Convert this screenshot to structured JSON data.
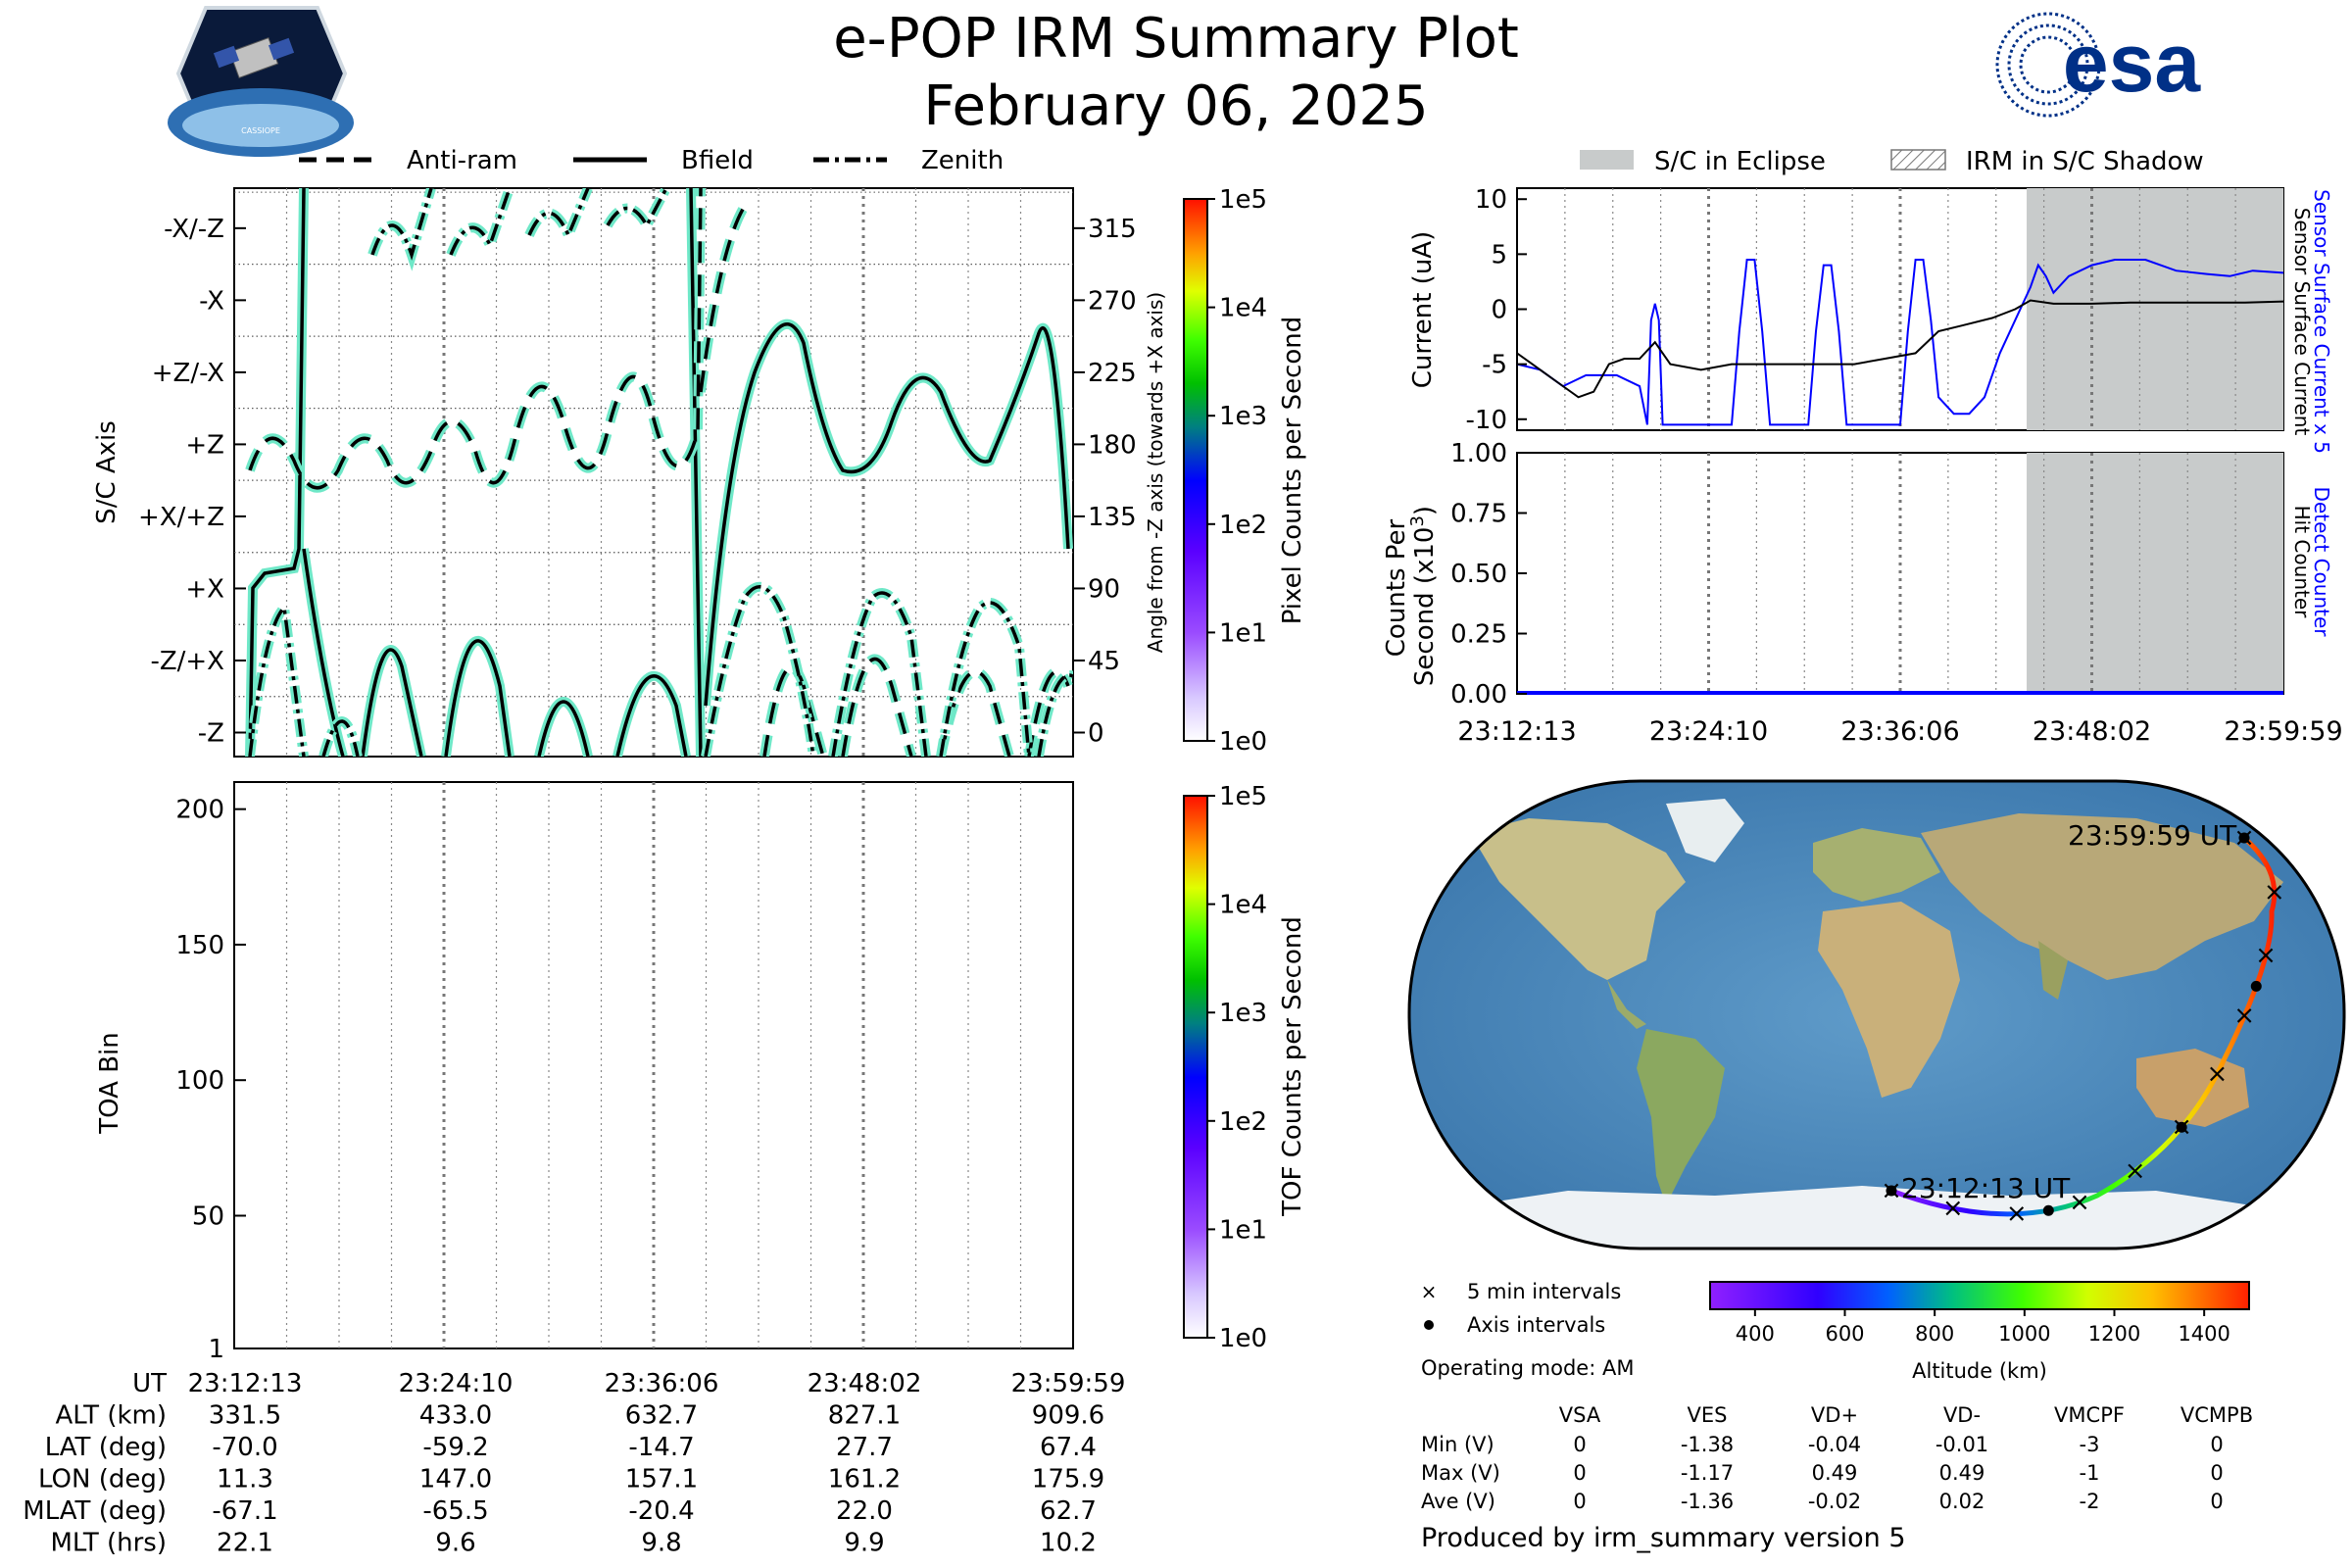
{
  "header": {
    "title": "e-POP IRM Summary Plot",
    "date": "February 06, 2025",
    "left_logo_text": "CASSIOPE",
    "right_logo_text": "esa",
    "brand_color": "#003087"
  },
  "time_ticks": [
    "23:12:13",
    "23:24:10",
    "23:36:06",
    "23:48:02",
    "23:59:59"
  ],
  "legend_top_left": [
    {
      "label": "Anti-ram",
      "style": "dashed"
    },
    {
      "label": "Bfield",
      "style": "solid"
    },
    {
      "label": "Zenith",
      "style": "dashdot"
    }
  ],
  "legend_top_right": [
    {
      "label": "S/C in Eclipse",
      "style": "filled"
    },
    {
      "label": "IRM in S/C Shadow",
      "style": "hatched"
    }
  ],
  "panels": {
    "axis_panel": {
      "ylabel": "S/C Axis",
      "left_ticks": [
        "-X/-Z",
        "-X",
        "+Z/-X",
        "+Z",
        "+X/+Z",
        "+X",
        "-Z/+X",
        "-Z"
      ],
      "right_ticks": [
        "315",
        "270",
        "225",
        "180",
        "135",
        "90",
        "45",
        "0"
      ],
      "right_label": "Angle from -Z axis (towards +X axis)",
      "colorbar_label": "Pixel Counts per Second",
      "colorbar_ticks": [
        "1e5",
        "1e4",
        "1e3",
        "1e2",
        "1e1",
        "1e0"
      ]
    },
    "toa_panel": {
      "ylabel": "TOA Bin",
      "yticks": [
        "200",
        "150",
        "100",
        "50",
        "1"
      ],
      "colorbar_label": "TOF Counts per Second",
      "colorbar_ticks": [
        "1e5",
        "1e4",
        "1e3",
        "1e2",
        "1e1",
        "1e0"
      ]
    },
    "current_panel": {
      "ylabel": "Current (uA)",
      "yticks": [
        "10",
        "5",
        "0",
        "-5",
        "-10"
      ],
      "right_label_blue": "Sensor Surface Current x 5",
      "right_label_black": "Sensor Surface Current"
    },
    "counts_panel": {
      "ylabel_line1": "Counts Per",
      "ylabel_line2": "Second (x10",
      "ylabel_exp": "3",
      "ylabel_close": ")",
      "yticks": [
        "1.00",
        "0.75",
        "0.50",
        "0.25",
        "0.00"
      ],
      "right_label_blue": "Detect Counter",
      "right_label_black": "Hit Counter"
    }
  },
  "orbit_table": {
    "row_labels": [
      "UT",
      "ALT (km)",
      "LAT (deg)",
      "LON (deg)",
      "MLAT (deg)",
      "MLT (hrs)"
    ],
    "columns": [
      [
        "23:12:13",
        "331.5",
        "-70.0",
        "11.3",
        "-67.1",
        "22.1"
      ],
      [
        "23:24:10",
        "433.0",
        "-59.2",
        "147.0",
        "-65.5",
        "9.6"
      ],
      [
        "23:36:06",
        "632.7",
        "-14.7",
        "157.1",
        "-20.4",
        "9.8"
      ],
      [
        "23:48:02",
        "827.1",
        "27.7",
        "161.2",
        "22.0",
        "9.9"
      ],
      [
        "23:59:59",
        "909.6",
        "67.4",
        "175.9",
        "62.7",
        "10.2"
      ]
    ]
  },
  "map": {
    "start_label": "23:12:13 UT",
    "end_label": "23:59:59 UT",
    "legend_5min": "5 min intervals",
    "legend_axis": "Axis intervals",
    "colorbar_label": "Altitude (km)",
    "colorbar_ticks": [
      "400",
      "600",
      "800",
      "1000",
      "1200",
      "1400"
    ]
  },
  "operating_mode": "Operating mode: AM",
  "voltage_table": {
    "headers": [
      "VSA",
      "VES",
      "VD+",
      "VD-",
      "VMCPF",
      "VCMPB"
    ],
    "rows": [
      {
        "label": "Min (V)",
        "values": [
          "0",
          "-1.38",
          "-0.04",
          "-0.01",
          "-3",
          "0"
        ]
      },
      {
        "label": "Max (V)",
        "values": [
          "0",
          "-1.17",
          "0.49",
          "0.49",
          "-1",
          "0"
        ]
      },
      {
        "label": "Ave (V)",
        "values": [
          "0",
          "-1.36",
          "-0.02",
          "0.02",
          "-2",
          "0"
        ]
      }
    ]
  },
  "footer": "Produced by irm_summary version 5",
  "chart_data": [
    {
      "type": "line",
      "title": "",
      "ylabel": "S/C Axis",
      "yrange": [
        -15,
        340
      ],
      "x": [
        "23:12:13",
        "23:24:10",
        "23:36:06",
        "23:48:02",
        "23:59:59"
      ],
      "series": [
        {
          "name": "Anti-ram",
          "color": "#00c8a0",
          "style": "dashed"
        },
        {
          "name": "Bfield",
          "color": "#00c8a0",
          "style": "solid"
        },
        {
          "name": "Zenith",
          "color": "#00c8a0",
          "style": "dashdot"
        }
      ]
    },
    {
      "type": "heatmap",
      "ylabel": "TOA Bin",
      "yrange": [
        1,
        210
      ],
      "values": "none"
    },
    {
      "type": "line",
      "ylabel": "Current (uA)",
      "yrange": [
        -11,
        11
      ],
      "eclipse_start_fraction": 0.665,
      "series": [
        {
          "name": "Sensor Surface Current x 5",
          "color": "#0000ff",
          "values": [
            [
              0.0,
              -5
            ],
            [
              0.03,
              -5.5
            ],
            [
              0.06,
              -7
            ],
            [
              0.09,
              -6
            ],
            [
              0.13,
              -6
            ],
            [
              0.16,
              -7
            ],
            [
              0.17,
              -10.5
            ],
            [
              0.175,
              -1
            ],
            [
              0.18,
              0.5
            ],
            [
              0.185,
              -1
            ],
            [
              0.19,
              -10.5
            ],
            [
              0.28,
              -10.5
            ],
            [
              0.29,
              -2
            ],
            [
              0.3,
              4.5
            ],
            [
              0.31,
              4.5
            ],
            [
              0.32,
              -2
            ],
            [
              0.33,
              -10.5
            ],
            [
              0.38,
              -10.5
            ],
            [
              0.39,
              -2
            ],
            [
              0.4,
              4
            ],
            [
              0.41,
              4
            ],
            [
              0.42,
              -2
            ],
            [
              0.43,
              -10.5
            ],
            [
              0.5,
              -10.5
            ],
            [
              0.51,
              -2
            ],
            [
              0.52,
              4.5
            ],
            [
              0.53,
              4.5
            ],
            [
              0.54,
              -1
            ],
            [
              0.55,
              -8
            ],
            [
              0.57,
              -9.5
            ],
            [
              0.59,
              -9.5
            ],
            [
              0.61,
              -8
            ],
            [
              0.63,
              -4
            ],
            [
              0.65,
              -1
            ],
            [
              0.67,
              2
            ],
            [
              0.68,
              4
            ],
            [
              0.69,
              3
            ],
            [
              0.7,
              1.5
            ],
            [
              0.72,
              3
            ],
            [
              0.75,
              4
            ],
            [
              0.78,
              4.5
            ],
            [
              0.82,
              4.5
            ],
            [
              0.86,
              3.5
            ],
            [
              0.9,
              3.2
            ],
            [
              0.93,
              3
            ],
            [
              0.96,
              3.5
            ],
            [
              1.0,
              3.3
            ]
          ]
        },
        {
          "name": "Sensor Surface Current",
          "color": "#000000",
          "values": [
            [
              0.0,
              -4
            ],
            [
              0.02,
              -5
            ],
            [
              0.05,
              -6.5
            ],
            [
              0.08,
              -8
            ],
            [
              0.1,
              -7.5
            ],
            [
              0.12,
              -5
            ],
            [
              0.14,
              -4.5
            ],
            [
              0.16,
              -4.5
            ],
            [
              0.18,
              -3
            ],
            [
              0.2,
              -5
            ],
            [
              0.24,
              -5.5
            ],
            [
              0.28,
              -5
            ],
            [
              0.32,
              -5
            ],
            [
              0.36,
              -5
            ],
            [
              0.4,
              -5
            ],
            [
              0.44,
              -5
            ],
            [
              0.48,
              -4.5
            ],
            [
              0.52,
              -4
            ],
            [
              0.55,
              -2
            ],
            [
              0.58,
              -1.5
            ],
            [
              0.62,
              -0.8
            ],
            [
              0.65,
              0
            ],
            [
              0.67,
              0.8
            ],
            [
              0.7,
              0.5
            ],
            [
              0.75,
              0.5
            ],
            [
              0.8,
              0.6
            ],
            [
              0.85,
              0.6
            ],
            [
              0.9,
              0.6
            ],
            [
              0.95,
              0.6
            ],
            [
              1.0,
              0.7
            ]
          ]
        }
      ]
    },
    {
      "type": "line",
      "ylabel": "Counts Per Second (x10^3)",
      "yrange": [
        0,
        1
      ],
      "series": [
        {
          "name": "Detect Counter",
          "color": "#0000ff",
          "values": [
            [
              0,
              0
            ],
            [
              1,
              0
            ]
          ]
        },
        {
          "name": "Hit Counter",
          "color": "#000000",
          "values": [
            [
              0,
              0
            ],
            [
              1,
              0
            ]
          ]
        }
      ]
    }
  ]
}
